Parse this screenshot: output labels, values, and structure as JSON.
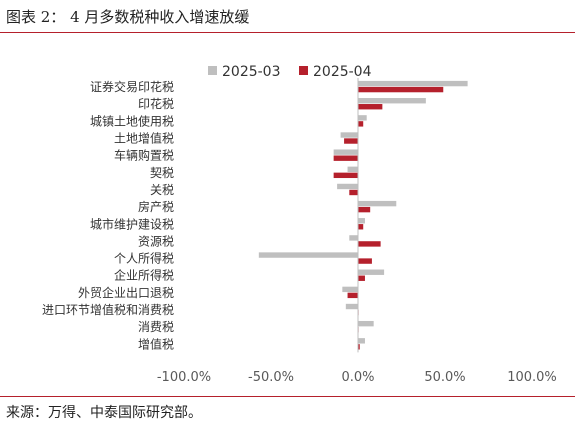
{
  "header": {
    "title": "图表 2： 4 月多数税种收入增速放缓"
  },
  "footer": {
    "source": "来源：万得、中泰国际研究部。"
  },
  "colors": {
    "accent": "#b5202c",
    "series1": "#bfbfbf",
    "series2": "#b5202c",
    "axis": "#595959"
  },
  "chart_data": {
    "type": "bar",
    "orientation": "horizontal",
    "categories": [
      "证券交易印花税",
      "印花税",
      "城镇土地使用税",
      "土地增值税",
      "车辆购置税",
      "契税",
      "关税",
      "房产税",
      "城市维护建设税",
      "资源税",
      "个人所得税",
      "企业所得税",
      "外贸企业出口退税",
      "进口环节增值税和消费税",
      "消费税",
      "增值税"
    ],
    "series": [
      {
        "name": "2025-03",
        "values": [
          63,
          39,
          5,
          -10,
          -14,
          -6,
          -12,
          22,
          4,
          -5,
          -57,
          15,
          -9,
          -7,
          9,
          4
        ]
      },
      {
        "name": "2025-04",
        "values": [
          49,
          14,
          3,
          -8,
          -14,
          -14,
          -5,
          7,
          3,
          13,
          8,
          4,
          -6,
          0,
          0,
          1
        ]
      }
    ],
    "xlim": [
      -100,
      100
    ],
    "xticks": [
      "-100.0%",
      "-50.0%",
      "0.0%",
      "50.0%",
      "100.0%"
    ],
    "legend": "top-center",
    "grid": false
  }
}
